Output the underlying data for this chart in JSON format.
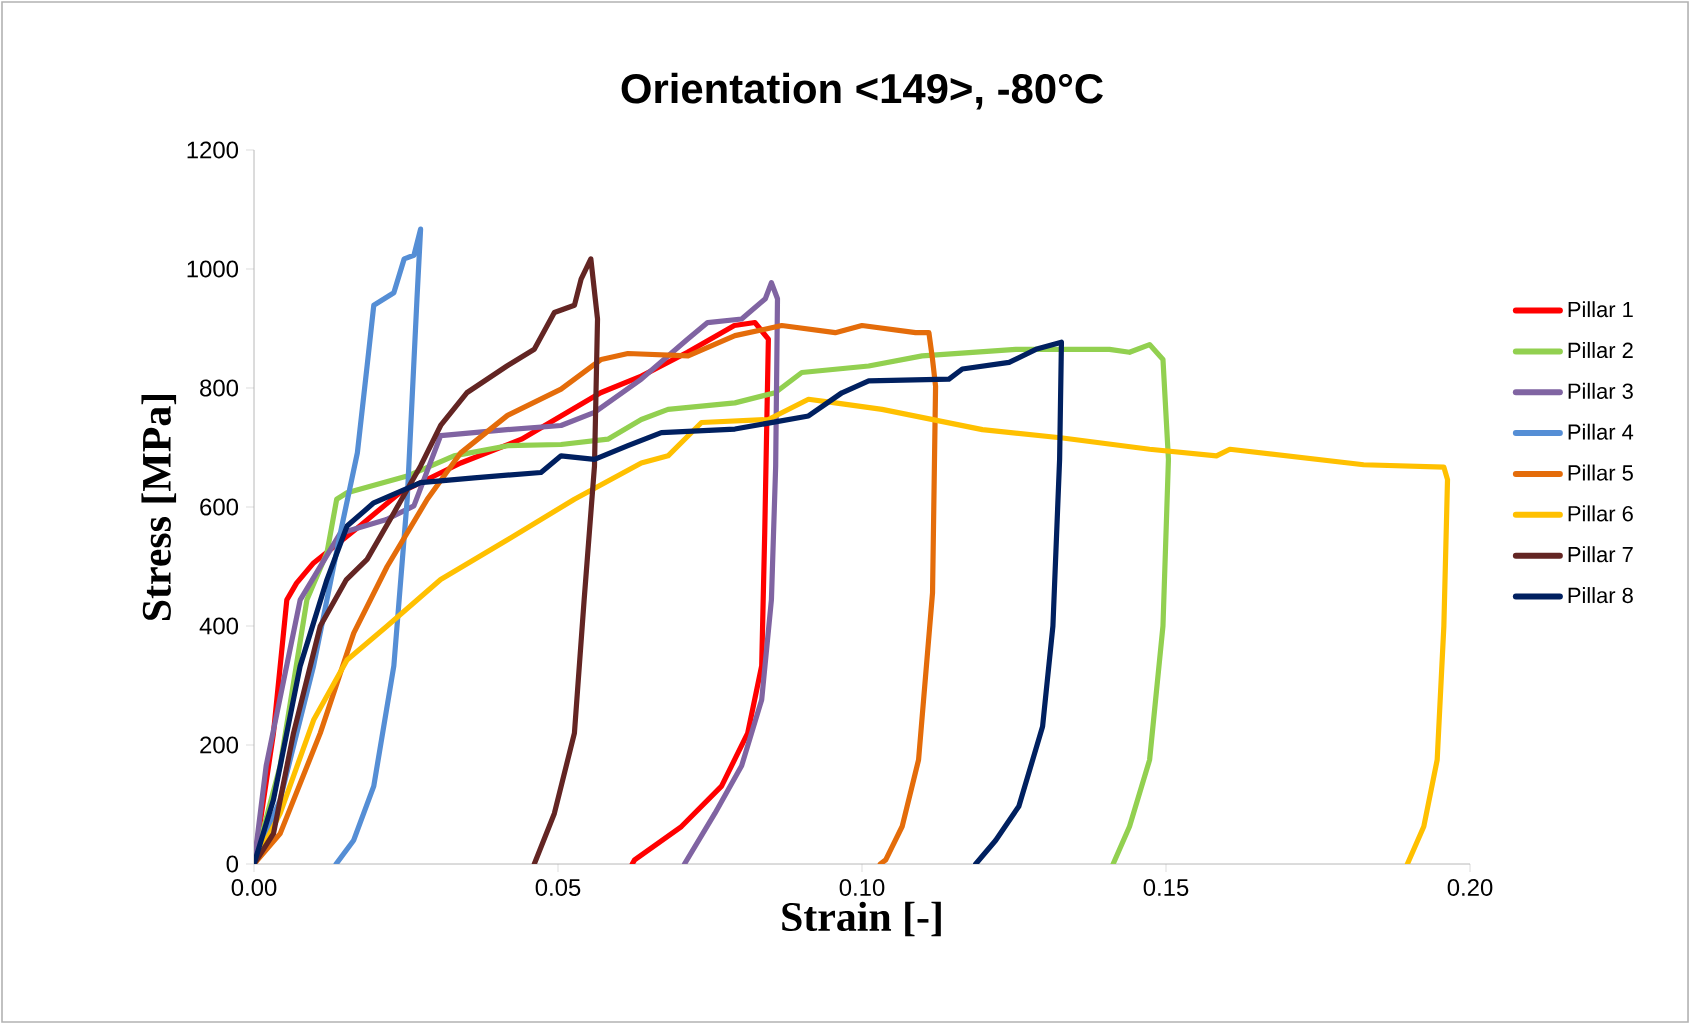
{
  "chart_data": {
    "type": "line",
    "title": "Orientation <149>, -80°C",
    "xlabel": "Strain [-]",
    "ylabel": "Stress [MPa]",
    "xlim": [
      0,
      0.2
    ],
    "ylim": [
      0,
      1200
    ],
    "xticks": [
      {
        "value": 0,
        "label": "0.00"
      },
      {
        "value": 0.05,
        "label": "0.05"
      },
      {
        "value": 0.1,
        "label": "0.10"
      },
      {
        "value": 0.15,
        "label": "0.15"
      },
      {
        "value": 0.2,
        "label": "0.20"
      }
    ],
    "yticks": [
      0,
      200,
      400,
      600,
      800,
      1000,
      1200
    ],
    "legend": "right",
    "grid": false,
    "marker": "none",
    "line_style": "solid",
    "series": [
      {
        "name": "Pillar 1",
        "color": "#ff0000",
        "x": [
          0,
          0.0032,
          0.0054,
          0.007,
          0.0098,
          0.0175,
          0.024,
          0.034,
          0.044,
          0.057,
          0.0637,
          0.0713,
          0.079,
          0.0824,
          0.0846,
          0.084,
          0.0835,
          0.0812,
          0.0769,
          0.0703,
          0.0626,
          0.0622
        ],
        "values": [
          0,
          220,
          444,
          472,
          506,
          569,
          624,
          674,
          714,
          792,
          820,
          860,
          905,
          910,
          882,
          557,
          333,
          220,
          131,
          63,
          7,
          0
        ]
      },
      {
        "name": "Pillar 2",
        "color": "#92d050",
        "x": [
          0,
          0.0043,
          0.0087,
          0.012,
          0.0136,
          0.0153,
          0.0252,
          0.0329,
          0.0417,
          0.0505,
          0.0582,
          0.0637,
          0.0681,
          0.0791,
          0.0857,
          0.0901,
          0.1011,
          0.1099,
          0.1253,
          0.1407,
          0.144,
          0.1473,
          0.1495,
          0.1504,
          0.1495,
          0.1473,
          0.144,
          0.1413
        ],
        "values": [
          0,
          165,
          444,
          523,
          613,
          624,
          652,
          686,
          703,
          705,
          714,
          747,
          764,
          775,
          792,
          826,
          837,
          854,
          865,
          865,
          860,
          873,
          848,
          680,
          400,
          175,
          63,
          0
        ]
      },
      {
        "name": "Pillar 3",
        "color": "#8064a2",
        "x": [
          0,
          0.002,
          0.0076,
          0.0142,
          0.0218,
          0.0263,
          0.0307,
          0.0416,
          0.0505,
          0.056,
          0.0637,
          0.0713,
          0.0746,
          0.0802,
          0.0841,
          0.0851,
          0.0861,
          0.0858,
          0.0851,
          0.0835,
          0.0802,
          0.0758,
          0.0708
        ],
        "values": [
          0,
          165,
          444,
          556,
          579,
          602,
          720,
          730,
          737,
          759,
          815,
          882,
          910,
          916,
          950,
          977,
          950,
          669,
          444,
          276,
          165,
          85,
          0
        ]
      },
      {
        "name": "Pillar 4",
        "color": "#558ed5",
        "x": [
          0,
          0.0043,
          0.0098,
          0.0142,
          0.017,
          0.0186,
          0.0197,
          0.023,
          0.0247,
          0.0263,
          0.0274,
          0.0268,
          0.0252,
          0.023,
          0.0197,
          0.0164,
          0.0135
        ],
        "values": [
          0,
          108,
          333,
          556,
          691,
          837,
          939,
          960,
          1017,
          1023,
          1067,
          949,
          613,
          333,
          131,
          40,
          0
        ]
      },
      {
        "name": "Pillar 5",
        "color": "#e46c0a",
        "x": [
          0,
          0.0043,
          0.0109,
          0.0164,
          0.0219,
          0.0285,
          0.034,
          0.0417,
          0.0505,
          0.0571,
          0.0615,
          0.0714,
          0.0791,
          0.0868,
          0.0956,
          0.1,
          0.1088,
          0.111,
          0.1116,
          0.1121,
          0.1116,
          0.1093,
          0.1066,
          0.1039,
          0.103
        ],
        "values": [
          0,
          51,
          220,
          388,
          500,
          613,
          691,
          754,
          798,
          848,
          858,
          854,
          888,
          905,
          893,
          905,
          893,
          893,
          848,
          803,
          456,
          175,
          63,
          7,
          0
        ]
      },
      {
        "name": "Pillar 6",
        "color": "#ffc000",
        "x": [
          0,
          0.0043,
          0.0098,
          0.0153,
          0.0219,
          0.0307,
          0.0417,
          0.0527,
          0.0637,
          0.0681,
          0.0736,
          0.0846,
          0.0912,
          0.0956,
          0.1033,
          0.1198,
          0.133,
          0.1473,
          0.1583,
          0.1605,
          0.1825,
          0.1957,
          0.1963,
          0.1957,
          0.1946,
          0.1924,
          0.1897
        ],
        "values": [
          0,
          85,
          242,
          343,
          400,
          478,
          545,
          613,
          674,
          686,
          742,
          747,
          781,
          775,
          764,
          730,
          716,
          697,
          686,
          697,
          671,
          667,
          646,
          400,
          175,
          63,
          0
        ]
      },
      {
        "name": "Pillar 7",
        "color": "#632523",
        "x": [
          0,
          0.0032,
          0.0065,
          0.0109,
          0.0152,
          0.0186,
          0.023,
          0.0274,
          0.0307,
          0.035,
          0.0416,
          0.0461,
          0.0494,
          0.0527,
          0.0538,
          0.0554,
          0.0565,
          0.056,
          0.0543,
          0.0527,
          0.0494,
          0.0461
        ],
        "values": [
          0,
          51,
          220,
          400,
          478,
          512,
          590,
          669,
          737,
          792,
          837,
          865,
          927,
          939,
          983,
          1017,
          916,
          669,
          444,
          220,
          85,
          0
        ]
      },
      {
        "name": "Pillar 8",
        "color": "#002060",
        "x": [
          0,
          0.0032,
          0.0076,
          0.012,
          0.0153,
          0.0197,
          0.0274,
          0.0362,
          0.0472,
          0.0505,
          0.056,
          0.0615,
          0.067,
          0.0791,
          0.0912,
          0.0967,
          0.1011,
          0.1143,
          0.1165,
          0.1242,
          0.1286,
          0.1328,
          0.1325,
          0.1314,
          0.1297,
          0.1258,
          0.122,
          0.1187
        ],
        "values": [
          0,
          108,
          333,
          478,
          568,
          607,
          641,
          649,
          658,
          686,
          680,
          703,
          725,
          731,
          753,
          792,
          812,
          815,
          832,
          843,
          865,
          877,
          680,
          400,
          231,
          97,
          40,
          0
        ]
      }
    ]
  }
}
